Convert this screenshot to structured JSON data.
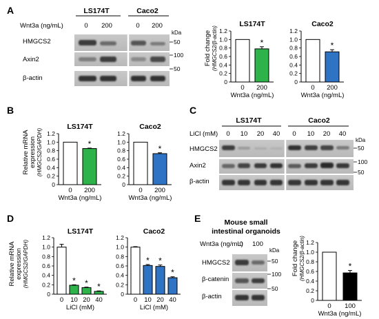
{
  "panels": {
    "A": {
      "letter": "A",
      "blot": {
        "treatment_label": "Wnt3a (ng/mL)",
        "kda_label": "kDa",
        "groups": [
          {
            "name": "LS174T",
            "lanes": [
              "0",
              "200"
            ]
          },
          {
            "name": "Caco2",
            "lanes": [
              "0",
              "200"
            ]
          }
        ],
        "rows": [
          {
            "label": "HMGCS2",
            "marker": "50"
          },
          {
            "label": "Axin2",
            "marker": "100"
          },
          {
            "label": "β-actin",
            "marker": "50"
          }
        ]
      },
      "ylabel_main": "Fold change",
      "ylabel_sub": "(HMGCS2/β-actin)",
      "charts": [
        "A_LS174T",
        "A_Caco2"
      ]
    },
    "B": {
      "letter": "B",
      "ylabel_line1": "Relative mRNA",
      "ylabel_line2": "expression",
      "ylabel_sub": "(HMGCS2/GAPDH)",
      "charts": [
        "B_LS174T",
        "B_Caco2"
      ]
    },
    "C": {
      "letter": "C",
      "blot": {
        "treatment_label": "LiCl (mM)",
        "kda_label": "kDa",
        "groups": [
          {
            "name": "LS174T",
            "lanes": [
              "0",
              "10",
              "20",
              "40"
            ]
          },
          {
            "name": "Caco2",
            "lanes": [
              "0",
              "10",
              "20",
              "40"
            ]
          }
        ],
        "rows": [
          {
            "label": "HMGCS2",
            "marker": "50"
          },
          {
            "label": "Axin2",
            "marker": "100"
          },
          {
            "label": "β-actin",
            "marker": "50"
          }
        ]
      }
    },
    "D": {
      "letter": "D",
      "ylabel_line1": "Relative mRNA",
      "ylabel_line2": "expression",
      "ylabel_sub": "(HMGCS2/GAPDH)",
      "charts": [
        "D_LS174T",
        "D_Caco2"
      ]
    },
    "E": {
      "letter": "E",
      "blot": {
        "title_line1": "Mouse small",
        "title_line2": "intestinal organoids",
        "treatment_label": "Wnt3a (ng/mL)",
        "kda_label": "kDa",
        "lanes": [
          "0",
          "100"
        ],
        "rows": [
          {
            "label": "HMGCS2",
            "marker": "50"
          },
          {
            "label": "β-catenin",
            "marker": "100"
          },
          {
            "label": "β-actin",
            "marker": "50"
          }
        ]
      },
      "ylabel_main": "Fold change",
      "ylabel_sub": "(HMGCS2/β-actin)",
      "charts": [
        "E_organoids"
      ]
    }
  },
  "chart_data": [
    {
      "id": "A_LS174T",
      "type": "bar",
      "title": "LS174T",
      "categories": [
        "0",
        "200"
      ],
      "values": [
        1.0,
        0.78
      ],
      "errors": [
        0,
        0.05
      ],
      "significance": [
        "",
        "*"
      ],
      "xlabel": "Wnt3a (ng/mL)",
      "ylim": [
        0,
        1.2
      ],
      "yticks": [
        "0",
        "0.2",
        "0.4",
        "0.6",
        "0.8",
        "1.0",
        "1.2"
      ],
      "colors": [
        "#ffffff",
        "#2db34a"
      ]
    },
    {
      "id": "A_Caco2",
      "type": "bar",
      "title": "Caco2",
      "categories": [
        "0",
        "200"
      ],
      "values": [
        1.0,
        0.71
      ],
      "errors": [
        0,
        0.05
      ],
      "significance": [
        "",
        "*"
      ],
      "xlabel": "Wnt3a (ng/mL)",
      "ylim": [
        0,
        1.2
      ],
      "yticks": [
        "0",
        "0.2",
        "0.4",
        "0.6",
        "0.8",
        "1.0",
        "1.2"
      ],
      "colors": [
        "#ffffff",
        "#2f74c4"
      ]
    },
    {
      "id": "B_LS174T",
      "type": "bar",
      "title": "LS174T",
      "categories": [
        "0",
        "200"
      ],
      "values": [
        1.0,
        0.85
      ],
      "errors": [
        0,
        0.01
      ],
      "significance": [
        "",
        "*"
      ],
      "xlabel": "Wnt3a (ng/mL)",
      "ylim": [
        0,
        1.2
      ],
      "yticks": [
        "0",
        "0.2",
        "0.4",
        "0.6",
        "0.8",
        "1.0",
        "1.2"
      ],
      "colors": [
        "#ffffff",
        "#2db34a"
      ]
    },
    {
      "id": "B_Caco2",
      "type": "bar",
      "title": "Caco2",
      "categories": [
        "0",
        "200"
      ],
      "values": [
        1.0,
        0.73
      ],
      "errors": [
        0,
        0.02
      ],
      "significance": [
        "",
        "*"
      ],
      "xlabel": "Wnt3a (ng/mL)",
      "ylim": [
        0,
        1.2
      ],
      "yticks": [
        "0",
        "0.2",
        "0.4",
        "0.6",
        "0.8",
        "1.0",
        "1.2"
      ],
      "colors": [
        "#ffffff",
        "#2f74c4"
      ]
    },
    {
      "id": "D_LS174T",
      "type": "bar",
      "title": "LS174T",
      "categories": [
        "0",
        "10",
        "20",
        "40"
      ],
      "values": [
        1.0,
        0.19,
        0.14,
        0.06
      ],
      "errors": [
        0.06,
        0.01,
        0.01,
        0.01
      ],
      "significance": [
        "",
        "*",
        "*",
        "*"
      ],
      "xlabel": "LiCl (mM)",
      "ylim": [
        0,
        1.2
      ],
      "yticks": [
        "0",
        "0.2",
        "0.4",
        "0.6",
        "0.8",
        "1.0",
        "1.2"
      ],
      "colors": [
        "#ffffff",
        "#2db34a",
        "#2db34a",
        "#2db34a"
      ]
    },
    {
      "id": "D_Caco2",
      "type": "bar",
      "title": "Caco2",
      "categories": [
        "0",
        "10",
        "20",
        "40"
      ],
      "values": [
        1.0,
        0.61,
        0.59,
        0.35
      ],
      "errors": [
        0.01,
        0.02,
        0.03,
        0.02
      ],
      "significance": [
        "",
        "*",
        "*",
        "*"
      ],
      "xlabel": "LiCl (mM)",
      "ylim": [
        0,
        1.2
      ],
      "yticks": [
        "0",
        "0.2",
        "0.4",
        "0.6",
        "0.8",
        "1.0",
        "1.2"
      ],
      "colors": [
        "#ffffff",
        "#2f74c4",
        "#2f74c4",
        "#2f74c4"
      ]
    },
    {
      "id": "E_organoids",
      "type": "bar",
      "title": "",
      "categories": [
        "0",
        "100"
      ],
      "values": [
        1.0,
        0.57
      ],
      "errors": [
        0,
        0.05
      ],
      "significance": [
        "",
        "*"
      ],
      "xlabel": "Wnt3a (ng/mL)",
      "ylim": [
        0,
        1.2
      ],
      "yticks": [
        "0",
        "0.2",
        "0.4",
        "0.6",
        "0.8",
        "1.0",
        "1.2"
      ],
      "colors": [
        "#ffffff",
        "#000000"
      ]
    }
  ]
}
